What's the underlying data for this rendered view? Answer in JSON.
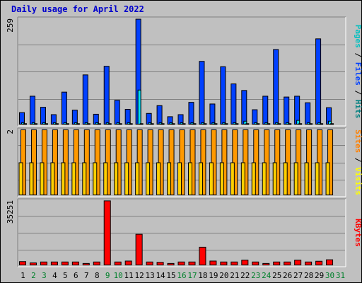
{
  "chart_data": {
    "type": "bar",
    "title": "Daily usage for April 2022",
    "categories": [
      "1",
      "2",
      "3",
      "4",
      "5",
      "6",
      "7",
      "8",
      "9",
      "10",
      "11",
      "12",
      "13",
      "14",
      "15",
      "16",
      "17",
      "18",
      "19",
      "20",
      "21",
      "22",
      "23",
      "24",
      "25",
      "26",
      "27",
      "28",
      "29",
      "30",
      "31"
    ],
    "weekend_days": [
      "2",
      "3",
      "9",
      "10",
      "16",
      "17",
      "23",
      "24",
      "30",
      "31"
    ],
    "panels": [
      {
        "name": "pages-files-hits",
        "ymax_label": "259",
        "ymax": 259,
        "legend": [
          {
            "text": "Pages",
            "color": "#00c0c0"
          },
          {
            "text": "Files",
            "color": "#0040ff"
          },
          {
            "text": "Hits",
            "color": "#008080"
          }
        ],
        "series": [
          {
            "name": "Hits",
            "color": "#0040ff",
            "values": [
              30,
              70,
              43,
              25,
              80,
              36,
              122,
              26,
              143,
              60,
              38,
              258,
              28,
              47,
              20,
              25,
              55,
              155,
              51,
              142,
              100,
              84,
              37,
              70,
              184,
              68,
              70,
              54,
              210,
              42,
              0
            ]
          },
          {
            "name": "Files",
            "color": "#00e0ff",
            "values": [
              5,
              5,
              5,
              5,
              5,
              5,
              5,
              5,
              5,
              5,
              5,
              85,
              5,
              5,
              5,
              5,
              5,
              5,
              5,
              5,
              5,
              9,
              5,
              5,
              5,
              5,
              11,
              5,
              5,
              9,
              0
            ]
          },
          {
            "name": "Pages",
            "color": "#00c0c0",
            "values": [
              3,
              3,
              3,
              3,
              3,
              3,
              3,
              3,
              3,
              3,
              3,
              3,
              3,
              3,
              3,
              3,
              3,
              3,
              3,
              3,
              3,
              3,
              3,
              3,
              3,
              3,
              3,
              3,
              3,
              3,
              0
            ]
          }
        ]
      },
      {
        "name": "sites-visits",
        "ymax_label": "2",
        "ymax": 2,
        "legend": [
          {
            "text": "Sites",
            "color": "#ff8000"
          },
          {
            "text": "Visits",
            "color": "#ffff00"
          }
        ],
        "series": [
          {
            "name": "Visits",
            "color": "#ff9900",
            "values": [
              2,
              2,
              2,
              2,
              2,
              2,
              2,
              2,
              2,
              2,
              2,
              2,
              2,
              2,
              2,
              2,
              2,
              2,
              2,
              2,
              2,
              2,
              2,
              2,
              2,
              2,
              2,
              2,
              2,
              2,
              0
            ]
          },
          {
            "name": "Sites",
            "color": "#ffd000",
            "values": [
              1,
              1,
              1,
              1,
              1,
              1,
              1,
              1,
              1,
              1,
              1,
              1,
              1,
              1,
              1,
              1,
              1,
              1,
              1,
              1,
              1,
              1,
              1,
              1,
              1,
              1,
              1,
              1,
              1,
              1,
              0
            ]
          }
        ]
      },
      {
        "name": "kbytes",
        "ymax_label": "35251",
        "ymax": 35251,
        "legend": [
          {
            "text": "KBytes",
            "color": "#ff0000"
          }
        ],
        "series": [
          {
            "name": "KBytes",
            "color": "#ff0000",
            "values": [
              2200,
              1500,
              2000,
              2000,
              2000,
              2000,
              1200,
              2000,
              35100,
              2000,
              2500,
              17000,
              2000,
              1800,
              1200,
              2000,
              2000,
              10000,
              2500,
              2000,
              2000,
              3000,
              2000,
              1200,
              2000,
              2000,
              3000,
              2000,
              2400,
              3200,
              0
            ]
          }
        ]
      }
    ]
  }
}
